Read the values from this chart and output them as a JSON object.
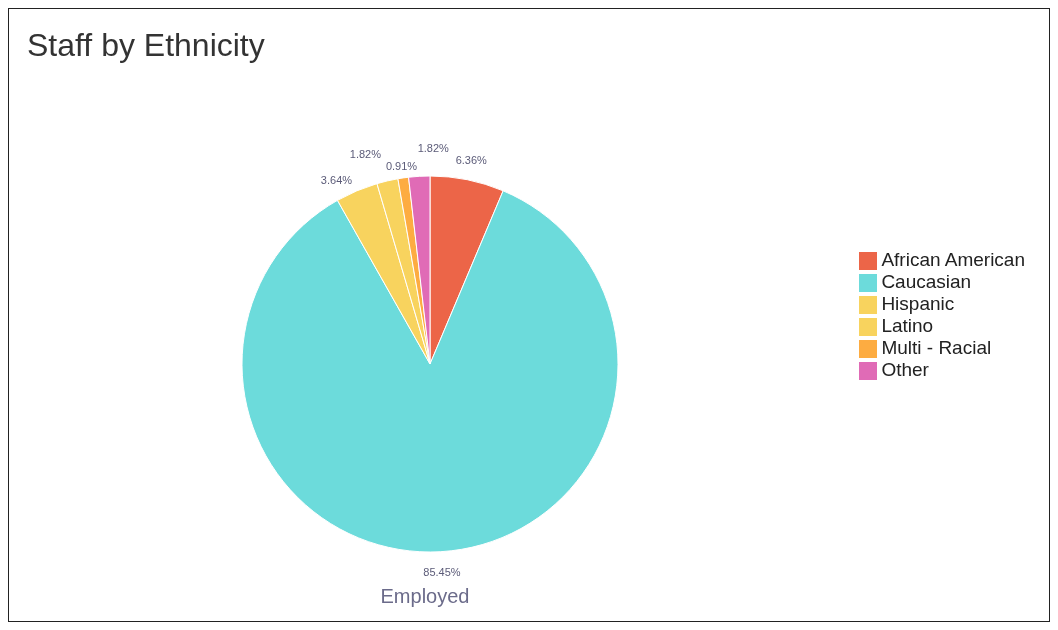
{
  "chart_data": {
    "type": "pie",
    "title": "Staff by Ethnicity",
    "xlabel": "Employed",
    "categories": [
      "African American",
      "Caucasian",
      "Hispanic",
      "Latino",
      "Multi - Racial",
      "Other"
    ],
    "values": [
      6.36,
      85.45,
      3.64,
      1.82,
      0.91,
      1.82
    ],
    "value_labels": [
      "6.36%",
      "85.45%",
      "3.64%",
      "1.82%",
      "0.91%",
      "1.82%"
    ],
    "colors": [
      "#ec6548",
      "#6cdbdb",
      "#f8d35e",
      "#f8d35e",
      "#fdac41",
      "#e06bb6"
    ],
    "legend": "right"
  }
}
